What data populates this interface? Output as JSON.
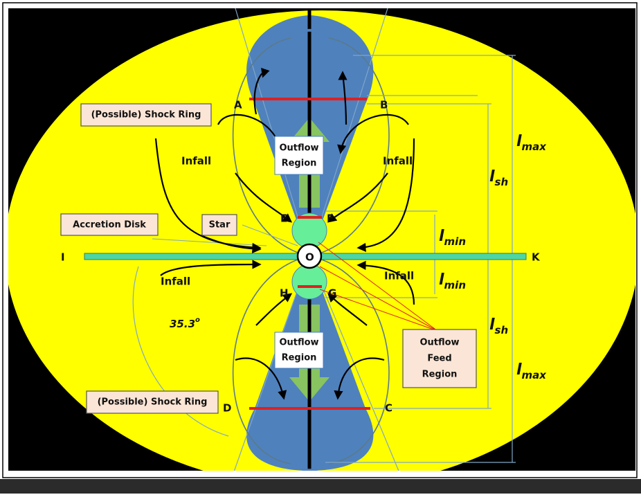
{
  "points": [
    "A",
    "B",
    "C",
    "D",
    "E",
    "F",
    "G",
    "H",
    "I",
    "K",
    "O"
  ],
  "labels": {
    "shock_ring_top": "(Possible) Shock Ring",
    "shock_ring_bottom": "(Possible) Shock Ring",
    "accretion_disk": "Accretion Disk",
    "star": "Star",
    "infall": [
      "Infall",
      "Infall",
      "Infall",
      "Infall"
    ],
    "outflow_top": [
      "Outflow",
      "Region"
    ],
    "outflow_bottom": [
      "Outflow",
      "Region"
    ],
    "outflow_feed": [
      "Outflow",
      "Feed",
      "Region"
    ],
    "angle": {
      "text": "35.3",
      "sup": "o"
    }
  },
  "dimensions": [
    {
      "base": "l",
      "sub": "max"
    },
    {
      "base": "l",
      "sub": "sh"
    },
    {
      "base": "l",
      "sub": "min"
    },
    {
      "base": "l",
      "sub": "min"
    },
    {
      "base": "l",
      "sub": "sh"
    },
    {
      "base": "l",
      "sub": "max"
    }
  ]
}
